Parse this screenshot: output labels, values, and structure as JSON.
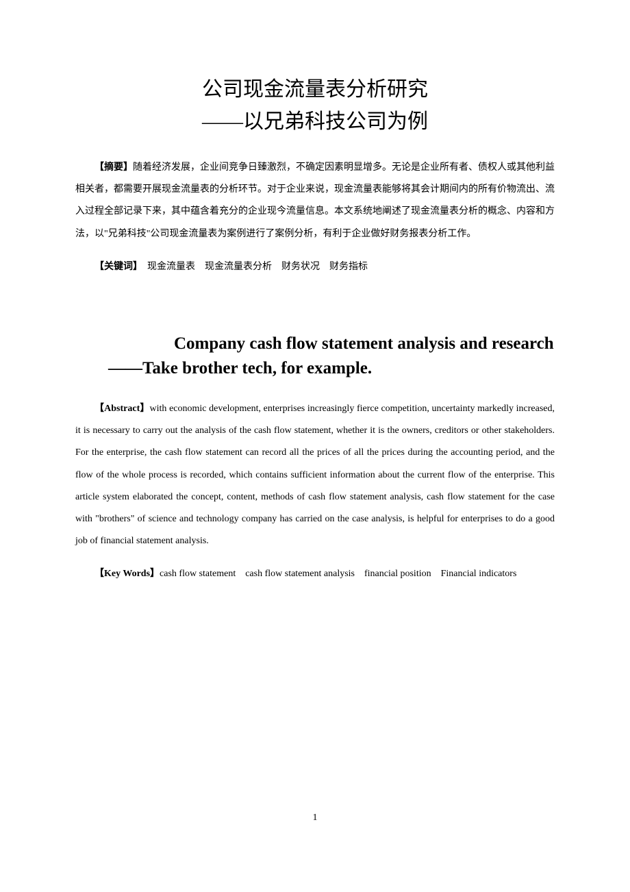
{
  "title_cn": "公司现金流量表分析研究",
  "subtitle_cn": "——以兄弟科技公司为例",
  "abstract_cn": {
    "label": "【摘要】",
    "text": "随着经济发展，企业间竞争日臻激烈，不确定因素明显增多。无论是企业所有者、债权人或其他利益相关者，都需要开展现金流量表的分析环节。对于企业来说，现金流量表能够将其会计期间内的所有价物流出、流入过程全部记录下来，其中蕴含着充分的企业现今流量信息。本文系统地阐述了现金流量表分析的概念、内容和方法，以\"兄弟科技\"公司现金流量表为案例进行了案例分析，有利于企业做好财务报表分析工作。"
  },
  "keywords_cn": {
    "label": "【关键词】",
    "text": "　现金流量表　现金流量表分析　财务状况　财务指标"
  },
  "title_en": "Company cash flow statement analysis and research",
  "subtitle_en": "——Take brother tech, for example.",
  "abstract_en": {
    "label": "【Abstract】",
    "text": "with economic development, enterprises increasingly fierce competition, uncertainty markedly increased, it is necessary to carry out the analysis of the cash flow statement, whether it is the owners, creditors or other stakeholders. For the enterprise, the cash flow statement can record all the prices of all the prices during the accounting period, and the flow of the whole process is recorded, which contains sufficient information about the current flow of the enterprise. This article system elaborated the concept, content, methods of cash flow statement analysis, cash flow statement for the case with \"brothers\" of science and technology company has carried on the case analysis, is helpful for enterprises to do a good job of financial statement analysis."
  },
  "keywords_en": {
    "label": "【Key Words】",
    "text": "cash flow statement　cash flow statement analysis　financial position　Financial indicators"
  },
  "page_number": "1"
}
